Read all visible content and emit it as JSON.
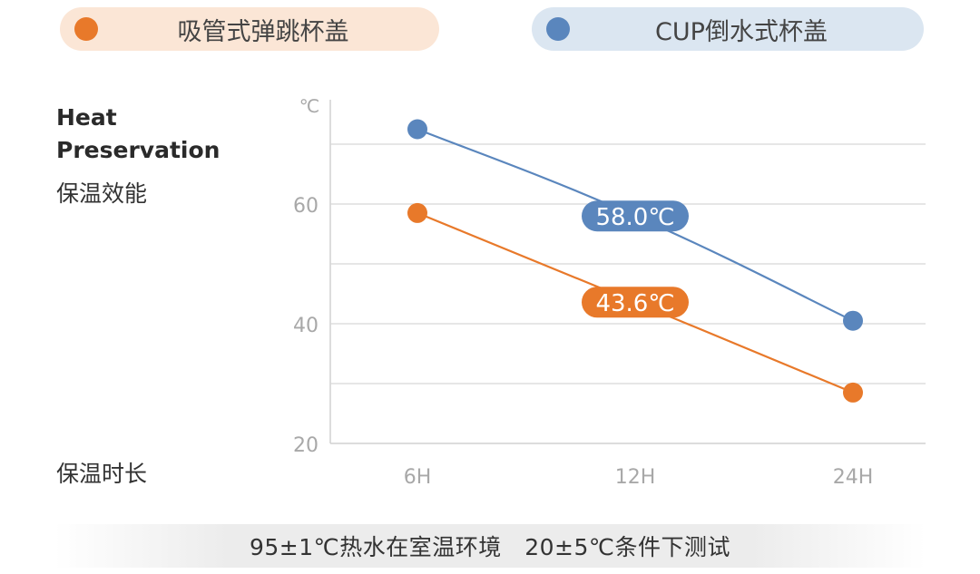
{
  "legend": [
    {
      "name": "吸管式弹跳杯盖",
      "color": "#e8792a"
    },
    {
      "name": "CUP倒水式杯盖",
      "color": "#5a86bd"
    }
  ],
  "labels": {
    "heat_en_1": "Heat",
    "heat_en_2": "Preservation",
    "heat_zh": "保温效能",
    "duration_zh": "保温时长"
  },
  "footer": "95±1℃热水在室温环境　20±5℃条件下测试",
  "chart_data": {
    "type": "line",
    "categories": [
      "6H",
      "12H",
      "24H"
    ],
    "ylabel": "℃",
    "ylim": [
      20,
      75
    ],
    "yticks": [
      20,
      40,
      60
    ],
    "grid": true,
    "series": [
      {
        "name": "吸管式弹跳杯盖",
        "color": "#e8792a",
        "values": [
          58.5,
          43.6,
          28.5
        ],
        "annotation": "43.6℃"
      },
      {
        "name": "CUP倒水式杯盖",
        "color": "#5a86bd",
        "values": [
          72.5,
          58.0,
          40.5
        ],
        "annotation": "58.0℃"
      }
    ]
  }
}
